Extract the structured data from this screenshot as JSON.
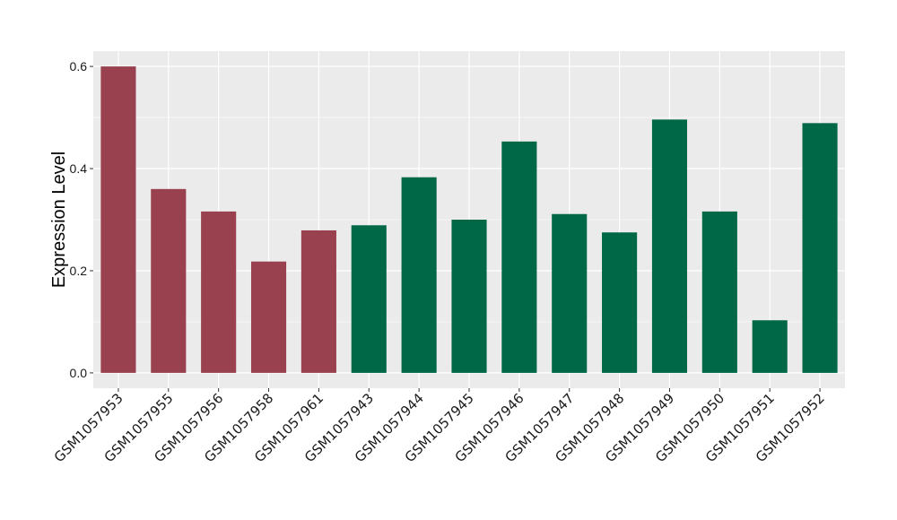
{
  "chart_data": {
    "type": "bar",
    "title": "",
    "xlabel": "",
    "ylabel": "Expression Level",
    "ylim": [
      -0.03,
      0.63
    ],
    "yticks": [
      0.0,
      0.2,
      0.4,
      0.6
    ],
    "ytick_labels": [
      "0.0",
      "0.2",
      "0.4",
      "0.6"
    ],
    "grid": true,
    "legend": "none",
    "categories": [
      "GSM1057953",
      "GSM1057955",
      "GSM1057956",
      "GSM1057958",
      "GSM1057961",
      "GSM1057943",
      "GSM1057944",
      "GSM1057945",
      "GSM1057946",
      "GSM1057947",
      "GSM1057948",
      "GSM1057949",
      "GSM1057950",
      "GSM1057951",
      "GSM1057952"
    ],
    "values": [
      0.6,
      0.36,
      0.316,
      0.218,
      0.279,
      0.289,
      0.383,
      0.3,
      0.453,
      0.311,
      0.275,
      0.496,
      0.316,
      0.103,
      0.489
    ],
    "groups": [
      "a",
      "a",
      "a",
      "a",
      "a",
      "b",
      "b",
      "b",
      "b",
      "b",
      "b",
      "b",
      "b",
      "b",
      "b"
    ],
    "colors": {
      "a": "#9a4150",
      "b": "#006847"
    },
    "panel_background": "#ebebeb",
    "grid_color": "#ffffff"
  }
}
